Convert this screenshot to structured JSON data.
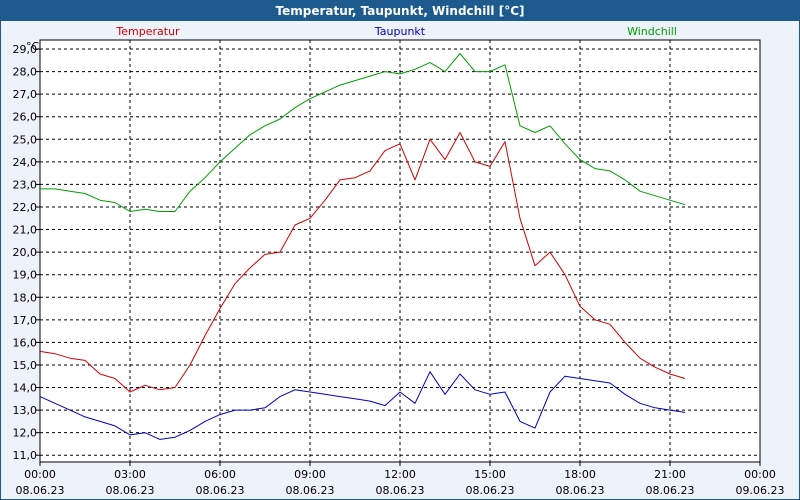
{
  "window_title": "Temperatur, Taupunkt, Windchill [°C]",
  "chart_data": {
    "type": "line",
    "title": "Temperatur, Taupunkt, Windchill [°C]",
    "y_unit": "°C",
    "ylim": [
      10.7,
      29.4
    ],
    "y_ticks": [
      "11,0",
      "12,0",
      "13,0",
      "14,0",
      "15,0",
      "16,0",
      "17,0",
      "18,0",
      "19,0",
      "20,0",
      "21,0",
      "22,0",
      "23,0",
      "24,0",
      "25,0",
      "26,0",
      "27,0",
      "28,0",
      "29,0"
    ],
    "x_ticks": [
      {
        "time": "00:00",
        "date": "08.06.23"
      },
      {
        "time": "03:00",
        "date": "08.06.23"
      },
      {
        "time": "06:00",
        "date": "08.06.23"
      },
      {
        "time": "09:00",
        "date": "08.06.23"
      },
      {
        "time": "12:00",
        "date": "08.06.23"
      },
      {
        "time": "15:00",
        "date": "08.06.23"
      },
      {
        "time": "18:00",
        "date": "08.06.23"
      },
      {
        "time": "21:00",
        "date": "08.06.23"
      },
      {
        "time": "00:00",
        "date": "09.06.23"
      }
    ],
    "x_hours": [
      0,
      0.5,
      1,
      1.5,
      2,
      2.5,
      3,
      3.5,
      4,
      4.5,
      5,
      5.5,
      6,
      6.5,
      7,
      7.5,
      8,
      8.5,
      9,
      9.5,
      10,
      10.5,
      11,
      11.5,
      12,
      12.5,
      13,
      13.5,
      14,
      14.5,
      15,
      15.5,
      16,
      16.5,
      17,
      17.5,
      18,
      18.5,
      19,
      19.5,
      20,
      20.5,
      21,
      21.5,
      22,
      22.5,
      23,
      23.5,
      24
    ],
    "series": [
      {
        "name": "Temperatur",
        "color": "#d40000",
        "values": [
          15.6,
          15.5,
          15.3,
          15.2,
          14.6,
          14.4,
          13.8,
          14.1,
          13.9,
          14.0,
          15.0,
          16.3,
          17.5,
          18.6,
          19.3,
          19.9,
          20.0,
          21.2,
          21.5,
          22.3,
          23.2,
          23.3,
          23.6,
          24.5,
          24.8,
          23.2,
          25.0,
          24.1,
          25.3,
          24.0,
          23.8,
          24.9,
          21.5,
          19.4,
          20.0,
          19.0,
          17.6,
          17.0,
          16.8,
          16.0,
          15.3,
          14.9,
          14.6,
          14.4
        ]
      },
      {
        "name": "Taupunkt",
        "color": "#0000c0",
        "values": [
          13.6,
          13.3,
          13.0,
          12.7,
          12.5,
          12.3,
          11.9,
          12.0,
          11.7,
          11.8,
          12.1,
          12.5,
          12.8,
          13.0,
          13.0,
          13.1,
          13.6,
          13.9,
          13.8,
          13.7,
          13.6,
          13.5,
          13.4,
          13.2,
          13.8,
          13.3,
          14.7,
          13.7,
          14.6,
          13.9,
          13.7,
          13.8,
          12.5,
          12.2,
          13.8,
          14.5,
          14.4,
          14.3,
          14.2,
          13.7,
          13.3,
          13.1,
          13.0,
          12.9
        ]
      },
      {
        "name": "Windchill",
        "color": "#00a000",
        "values": [
          22.8,
          22.8,
          22.7,
          22.6,
          22.3,
          22.2,
          21.8,
          21.9,
          21.8,
          21.8,
          22.7,
          23.3,
          24.0,
          24.6,
          25.2,
          25.6,
          25.9,
          26.4,
          26.8,
          27.1,
          27.4,
          27.6,
          27.8,
          28.0,
          27.9,
          28.1,
          28.4,
          28.0,
          28.8,
          28.0,
          28.0,
          28.3,
          25.6,
          25.3,
          25.6,
          24.8,
          24.1,
          23.7,
          23.6,
          23.2,
          22.7,
          22.5,
          22.3,
          22.1
        ]
      }
    ]
  }
}
